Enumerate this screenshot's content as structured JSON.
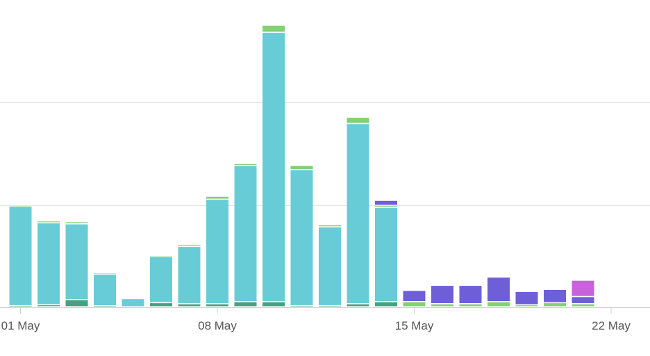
{
  "chart_data": {
    "type": "bar",
    "stacked": true,
    "title": "",
    "xlabel": "",
    "ylabel": "",
    "grid": true,
    "legend": "none",
    "y_axis_labels_shown": false,
    "ylim": [
      0,
      28
    ],
    "y_gridlines": [
      10,
      20
    ],
    "categories": [
      "01 May",
      "02 May",
      "03 May",
      "04 May",
      "05 May",
      "06 May",
      "07 May",
      "08 May",
      "09 May",
      "10 May",
      "11 May",
      "12 May",
      "13 May",
      "14 May",
      "15 May",
      "16 May",
      "17 May",
      "18 May",
      "19 May",
      "20 May",
      "21 May"
    ],
    "x_tick_labels": [
      "01 May",
      "08 May",
      "15 May",
      "22 May"
    ],
    "series": [
      {
        "color": "#4a9f80",
        "values": [
          0.1,
          0.2,
          0.7,
          0.1,
          0,
          0.4,
          0.3,
          0.3,
          0.5,
          0.5,
          0.1,
          0.1,
          0.3,
          0.5,
          0,
          0,
          0,
          0,
          0,
          0,
          0
        ]
      },
      {
        "color": "#68ccd7",
        "values": [
          9.7,
          8.0,
          7.4,
          3.1,
          0.8,
          4.5,
          5.6,
          10.2,
          13.3,
          26.3,
          13.3,
          7.7,
          17.6,
          9.2,
          0,
          0,
          0,
          0,
          0,
          0,
          0
        ]
      },
      {
        "color": "#82d172",
        "values": [
          0.1,
          0.2,
          0.2,
          0.1,
          0,
          0.1,
          0.2,
          0.3,
          0.2,
          0.7,
          0.4,
          0.2,
          0.6,
          0.2,
          0.5,
          0.3,
          0.3,
          0.5,
          0.2,
          0.4,
          0.3
        ]
      },
      {
        "color": "#6e5fd9",
        "values": [
          0,
          0,
          0,
          0,
          0,
          0,
          0,
          0,
          0,
          0,
          0,
          0,
          0,
          0.5,
          1.1,
          1.8,
          1.8,
          2.4,
          1.3,
          1.3,
          0.7
        ]
      },
      {
        "color": "#c962dc",
        "values": [
          0,
          0,
          0,
          0,
          0,
          0,
          0,
          0,
          0,
          0,
          0,
          0,
          0,
          0,
          0,
          0,
          0,
          0,
          0,
          0,
          1.6
        ]
      }
    ]
  },
  "colors": {
    "grid": "#e6e6e6",
    "axis": "#cccccc",
    "tick_text": "#555555"
  }
}
